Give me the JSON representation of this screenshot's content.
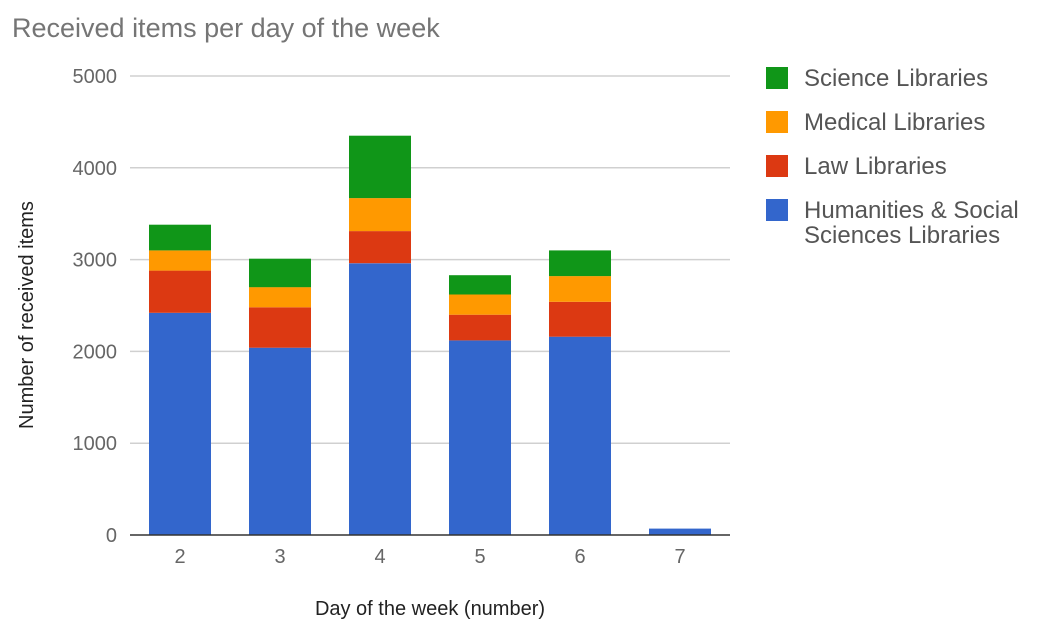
{
  "chart_data": {
    "type": "bar",
    "stacked": true,
    "title": "Received items per day of the week",
    "xlabel": "Day of the week (number)",
    "ylabel": "Number of received items",
    "ylim": [
      0,
      5000
    ],
    "yticks": [
      0,
      1000,
      2000,
      3000,
      4000,
      5000
    ],
    "grid": true,
    "legend_position": "right",
    "categories": [
      "2",
      "3",
      "4",
      "5",
      "6",
      "7"
    ],
    "series": [
      {
        "name": "Humanities & Social Sciences Libraries",
        "legend_lines": [
          "Humanities & Social",
          "Sciences Libraries"
        ],
        "color": "#3366cc",
        "values": [
          2420,
          2040,
          2960,
          2120,
          2160,
          70
        ]
      },
      {
        "name": "Law Libraries",
        "legend_lines": [
          "Law Libraries"
        ],
        "color": "#dc3912",
        "values": [
          460,
          440,
          350,
          280,
          380,
          0
        ]
      },
      {
        "name": "Medical Libraries",
        "legend_lines": [
          "Medical Libraries"
        ],
        "color": "#ff9900",
        "values": [
          220,
          220,
          360,
          220,
          280,
          0
        ]
      },
      {
        "name": "Science Libraries",
        "legend_lines": [
          "Science Libraries"
        ],
        "color": "#109618",
        "values": [
          280,
          310,
          680,
          210,
          280,
          0
        ]
      }
    ]
  }
}
